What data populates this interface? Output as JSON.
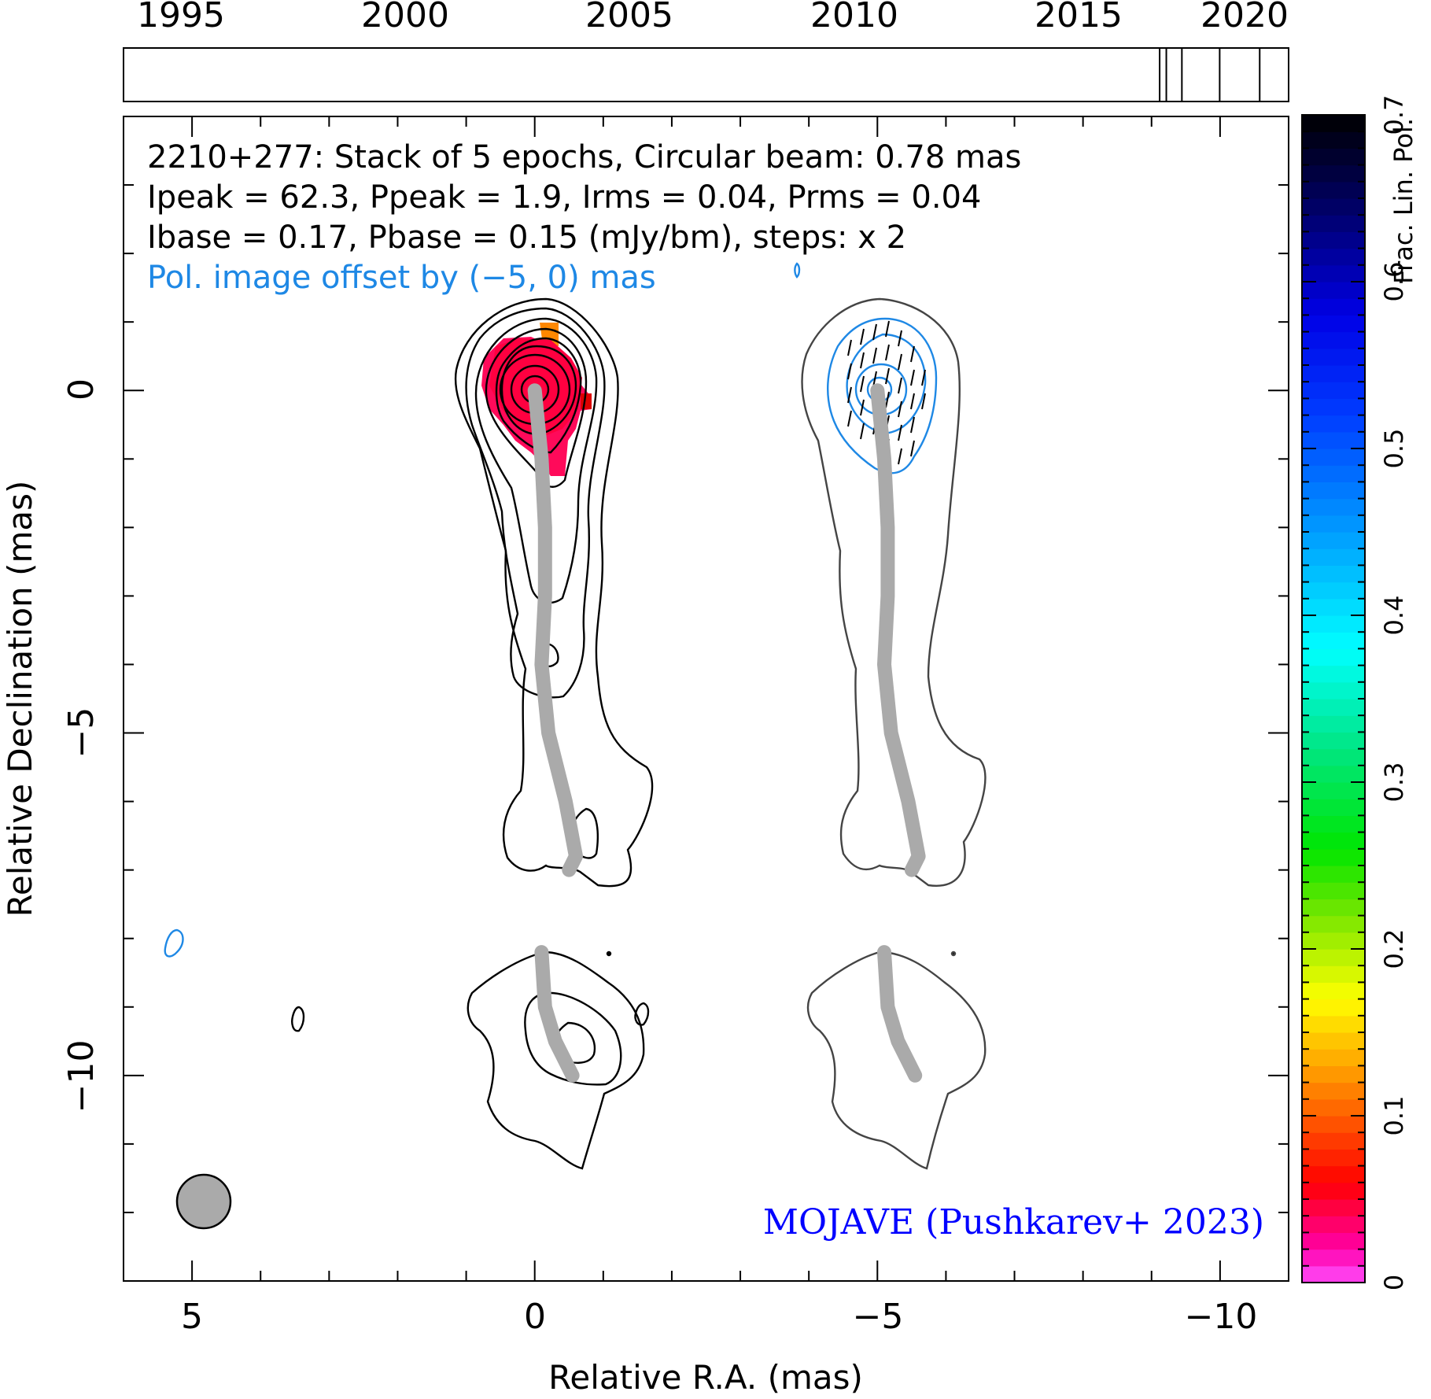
{
  "chart_data": [
    {
      "type": "timeline",
      "x_ticks": [
        "1995",
        "2000",
        "2005",
        "2010",
        "2015",
        "2020"
      ],
      "xlim": [
        1993.8,
        2020.0
      ],
      "epochs": [
        2017.1,
        2017.25,
        2017.6,
        2018.45,
        2019.35
      ]
    },
    {
      "type": "image",
      "title_lines": [
        "2210+277: Stack of 5 epochs, Circular beam: 0.78 mas",
        "Ipeak = 62.3, Ppeak = 1.9, Irms = 0.04, Prms = 0.04",
        "Ibase = 0.17, Pbase = 0.15 (mJy/bm), steps: x 2"
      ],
      "pol_note": "Pol. image offset by (−5, 0) mas",
      "xlabel": "Relative R.A. (mas)",
      "ylabel": "Relative Declination (mas)",
      "x_ticks": [
        "5",
        "0",
        "−5",
        "−10"
      ],
      "y_ticks": [
        "0",
        "−5",
        "−10"
      ],
      "xlim": [
        6.0,
        -11.0
      ],
      "ylim": [
        -13.0,
        4.0
      ],
      "beam_diameter_mas": 0.78,
      "credit": "MOJAVE (Pushkarev+ 2023)",
      "ridge_line": [
        [
          0.0,
          0.0
        ],
        [
          -0.1,
          -1.0
        ],
        [
          -0.15,
          -2.0
        ],
        [
          -0.15,
          -3.0
        ],
        [
          -0.1,
          -4.0
        ],
        [
          -0.2,
          -5.0
        ],
        [
          -0.45,
          -6.0
        ],
        [
          -0.6,
          -6.8
        ],
        [
          -0.5,
          -7.0
        ]
      ],
      "ridge_line_2": [
        [
          -0.1,
          -8.2
        ],
        [
          -0.15,
          -9.0
        ],
        [
          -0.3,
          -9.5
        ],
        [
          -0.55,
          -10.0
        ]
      ],
      "colorbar": {
        "label": "Frac. Lin. Pol.",
        "ticks": [
          "0",
          "0.1",
          "0.2",
          "0.3",
          "0.4",
          "0.5",
          "0.6",
          "0.7"
        ],
        "range": [
          0,
          0.7
        ]
      },
      "colors": {
        "stokes_i_contours": "#000000",
        "pol_contours": "#1e88e5",
        "ridge": "#aaaaaa",
        "beam": "#aaaaaa",
        "credit": "#0000ff",
        "pol_note": "#1e88e5"
      }
    }
  ]
}
